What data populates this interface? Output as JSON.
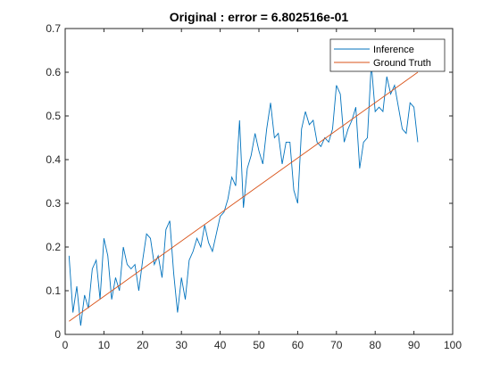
{
  "chart_data": {
    "type": "line",
    "title": "Original : error = 6.802516e-01",
    "xlabel": "",
    "ylabel": "",
    "xlim": [
      0,
      100
    ],
    "ylim": [
      0,
      0.7
    ],
    "x_ticks": [
      0,
      10,
      20,
      30,
      40,
      50,
      60,
      70,
      80,
      90,
      100
    ],
    "y_ticks": [
      0,
      0.1,
      0.2,
      0.3,
      0.4,
      0.5,
      0.6,
      0.7
    ],
    "x_tick_labels": [
      "0",
      "10",
      "20",
      "30",
      "40",
      "50",
      "60",
      "70",
      "80",
      "90",
      "100"
    ],
    "y_tick_labels": [
      "0",
      "0.1",
      "0.2",
      "0.3",
      "0.4",
      "0.5",
      "0.6",
      "0.7"
    ],
    "grid": false,
    "legend_position": "top-right",
    "series": [
      {
        "name": "Inference",
        "color": "#0072BD",
        "x": [
          1,
          2,
          3,
          4,
          5,
          6,
          7,
          8,
          9,
          10,
          11,
          12,
          13,
          14,
          15,
          16,
          17,
          18,
          19,
          20,
          21,
          22,
          23,
          24,
          25,
          26,
          27,
          28,
          29,
          30,
          31,
          32,
          33,
          34,
          35,
          36,
          37,
          38,
          39,
          40,
          41,
          42,
          43,
          44,
          45,
          46,
          47,
          48,
          49,
          50,
          51,
          52,
          53,
          54,
          55,
          56,
          57,
          58,
          59,
          60,
          61,
          62,
          63,
          64,
          65,
          66,
          67,
          68,
          69,
          70,
          71,
          72,
          73,
          74,
          75,
          76,
          77,
          78,
          79,
          80,
          81,
          82,
          83,
          84,
          85,
          86,
          87,
          88,
          89,
          90,
          91
        ],
        "y": [
          0.18,
          0.05,
          0.11,
          0.02,
          0.09,
          0.06,
          0.15,
          0.17,
          0.08,
          0.22,
          0.18,
          0.08,
          0.13,
          0.1,
          0.2,
          0.16,
          0.15,
          0.16,
          0.1,
          0.17,
          0.23,
          0.22,
          0.16,
          0.18,
          0.13,
          0.24,
          0.26,
          0.14,
          0.05,
          0.13,
          0.08,
          0.17,
          0.19,
          0.22,
          0.2,
          0.25,
          0.21,
          0.19,
          0.23,
          0.27,
          0.28,
          0.31,
          0.36,
          0.34,
          0.49,
          0.29,
          0.38,
          0.41,
          0.46,
          0.42,
          0.39,
          0.47,
          0.53,
          0.45,
          0.46,
          0.39,
          0.44,
          0.44,
          0.33,
          0.3,
          0.47,
          0.51,
          0.48,
          0.49,
          0.44,
          0.43,
          0.45,
          0.44,
          0.47,
          0.57,
          0.55,
          0.44,
          0.47,
          0.49,
          0.52,
          0.38,
          0.44,
          0.45,
          0.62,
          0.51,
          0.52,
          0.51,
          0.59,
          0.55,
          0.57,
          0.52,
          0.47,
          0.46,
          0.53,
          0.52,
          0.44
        ]
      },
      {
        "name": "Ground Truth",
        "color": "#D95319",
        "x": [
          1,
          91
        ],
        "y": [
          0.03,
          0.6
        ]
      }
    ]
  }
}
